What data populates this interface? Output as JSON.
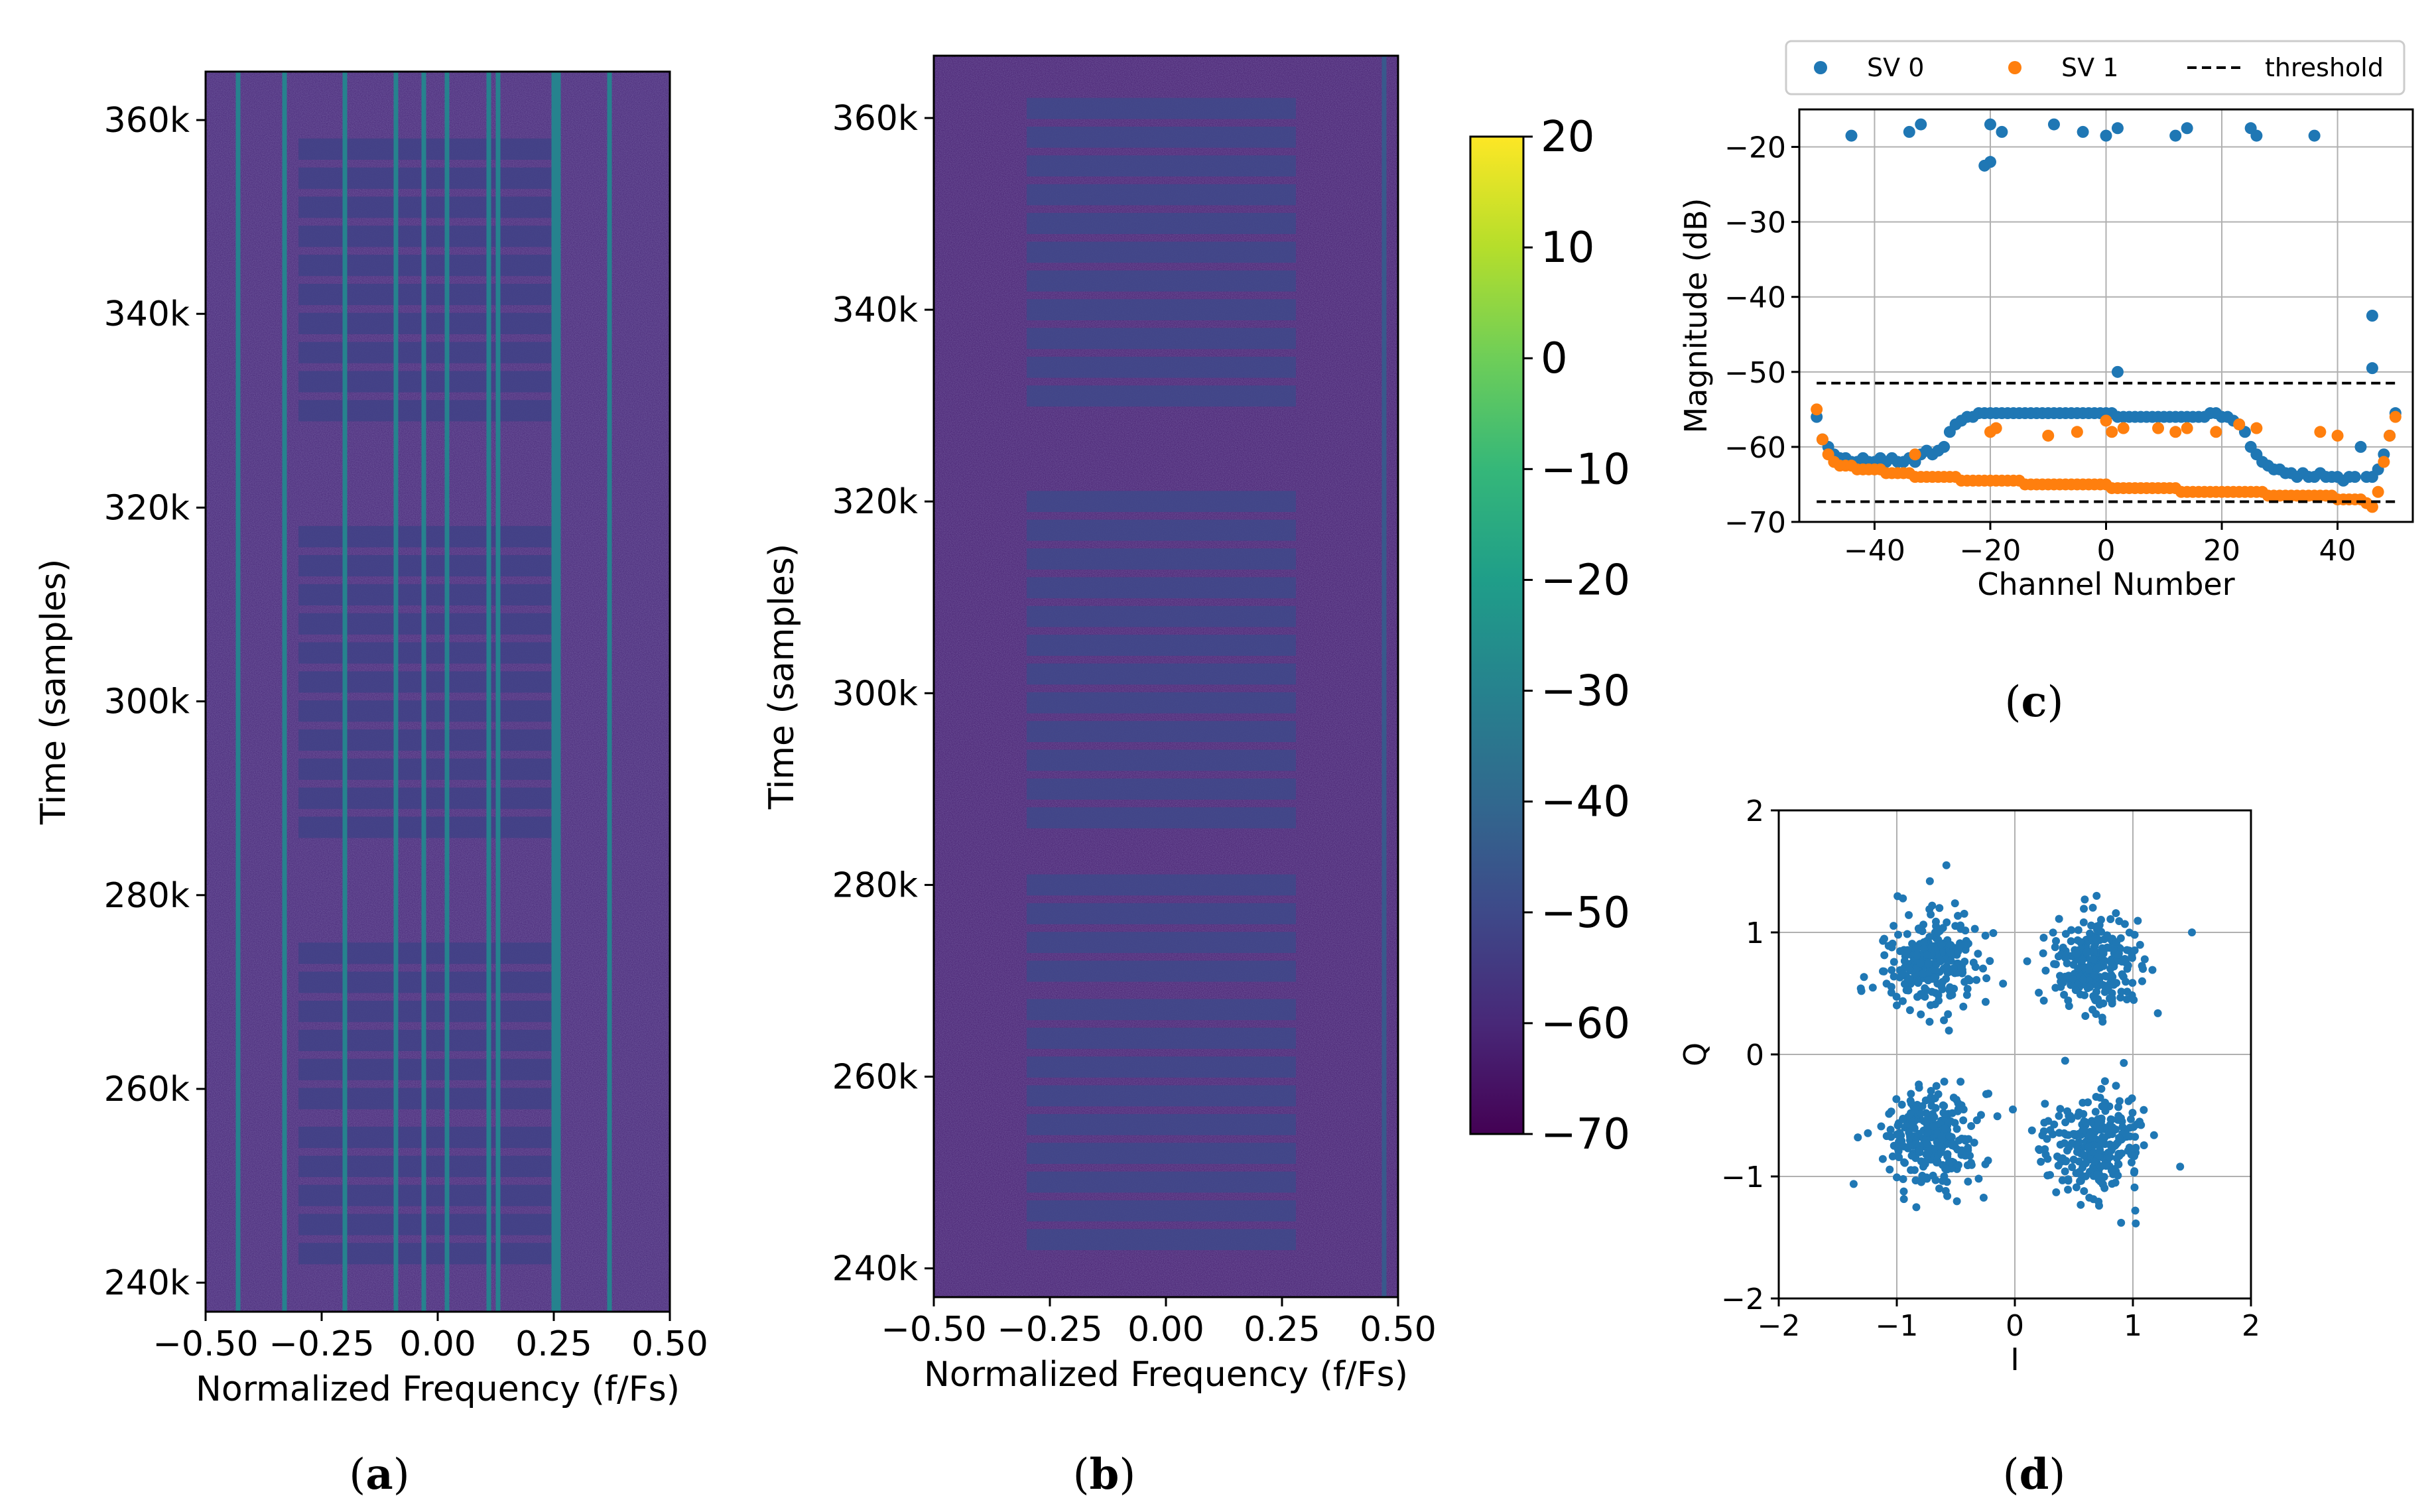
{
  "panels": [
    {
      "id": "a",
      "label_open": "(",
      "label_letter": "a",
      "label_close": ")"
    },
    {
      "id": "b",
      "label_open": "(",
      "label_letter": "b",
      "label_close": ")"
    },
    {
      "id": "c",
      "label_open": "(",
      "label_letter": "c",
      "label_close": ")"
    },
    {
      "id": "d",
      "label_open": "(",
      "label_letter": "d",
      "label_close": ")"
    }
  ],
  "colormap": [
    "#440154",
    "#482878",
    "#3e4989",
    "#31688e",
    "#26828e",
    "#1f9e89",
    "#35b779",
    "#6ece58",
    "#b5de2b",
    "#fde725"
  ],
  "chart_data": [
    {
      "id": "a",
      "type": "heatmap",
      "title": "",
      "xlabel": "Normalized Frequency (f/Fs)",
      "ylabel": "Time (samples)",
      "xlim": [
        -0.5,
        0.5
      ],
      "ylim": [
        237000,
        365000
      ],
      "xticks": [
        "−0.50",
        "−0.25",
        "0.00",
        "0.25",
        "0.50"
      ],
      "xtick_values": [
        -0.5,
        -0.25,
        0.0,
        0.25,
        0.5
      ],
      "yticks": [
        "240k",
        "260k",
        "280k",
        "300k",
        "320k",
        "340k",
        "360k"
      ],
      "ytick_values": [
        240000,
        260000,
        280000,
        300000,
        320000,
        340000,
        360000
      ],
      "background_level_db": -60,
      "tone_lines_freq": [
        -0.43,
        -0.33,
        -0.2,
        -0.09,
        -0.03,
        0.02,
        0.11,
        0.13,
        0.25,
        0.26,
        0.37
      ],
      "tone_level_db": -30,
      "bursts_freq_range": [
        -0.3,
        0.26
      ],
      "burst_level_db": -52,
      "burst_times": [
        243000,
        246000,
        249000,
        252000,
        255000,
        259000,
        262000,
        265000,
        268000,
        271000,
        274000,
        287000,
        290000,
        293000,
        296000,
        299000,
        302000,
        305000,
        308000,
        311000,
        314000,
        317000,
        330000,
        333000,
        336000,
        339000,
        342000,
        345000,
        348000,
        351000,
        354000,
        357000
      ]
    },
    {
      "id": "b",
      "type": "heatmap",
      "title": "",
      "xlabel": "Normalized Frequency (f/Fs)",
      "ylabel": "Time (samples)",
      "xlim": [
        -0.5,
        0.5
      ],
      "ylim": [
        237000,
        366500
      ],
      "xticks": [
        "−0.50",
        "−0.25",
        "0.00",
        "0.25",
        "0.50"
      ],
      "xtick_values": [
        -0.5,
        -0.25,
        0.0,
        0.25,
        0.5
      ],
      "yticks": [
        "240k",
        "260k",
        "280k",
        "300k",
        "320k",
        "340k",
        "360k"
      ],
      "ytick_values": [
        240000,
        260000,
        280000,
        300000,
        320000,
        340000,
        360000
      ],
      "background_level_db": -62,
      "tone_lines_freq": [
        0.47
      ],
      "tone_level_db": -45,
      "bursts_freq_range": [
        -0.3,
        0.28
      ],
      "burst_level_db": -50,
      "burst_times": [
        243000,
        246000,
        249000,
        252000,
        255000,
        258000,
        261000,
        264000,
        267000,
        271000,
        274000,
        277000,
        280000,
        287000,
        290000,
        293000,
        296000,
        299000,
        302000,
        305000,
        308000,
        311000,
        314000,
        317000,
        320000,
        331000,
        334000,
        337000,
        340000,
        343000,
        346000,
        349000,
        352000,
        355000,
        358000,
        361000
      ]
    },
    {
      "id": "colorbar",
      "type": "colorbar",
      "range": [
        -70,
        20
      ],
      "ticks": [
        "20",
        "10",
        "0",
        "−10",
        "−20",
        "−30",
        "−40",
        "−50",
        "−60",
        "−70"
      ],
      "tick_values": [
        20,
        10,
        0,
        -10,
        -20,
        -30,
        -40,
        -50,
        -60,
        -70
      ]
    },
    {
      "id": "c",
      "type": "scatter",
      "title": "",
      "xlabel": "Channel Number",
      "ylabel": "Magnitude (dB)",
      "xlim": [
        -53,
        53
      ],
      "ylim": [
        -70,
        -15
      ],
      "xticks": [
        "−40",
        "−20",
        "0",
        "20",
        "40"
      ],
      "xtick_values": [
        -40,
        -20,
        0,
        20,
        40
      ],
      "yticks": [
        "−20",
        "−30",
        "−40",
        "−50",
        "−60",
        "−70"
      ],
      "ytick_values": [
        -20,
        -30,
        -40,
        -50,
        -60,
        -70
      ],
      "grid": true,
      "legend_position": "top",
      "legend": [
        "SV 0",
        "SV 1",
        "threshold"
      ],
      "thresholds": [
        {
          "y": -51.5,
          "x_range": [
            -50,
            50
          ],
          "color": "#000000",
          "style": "dashed"
        },
        {
          "y": -67.3,
          "x_range": [
            -50,
            50
          ],
          "color": "#000000",
          "style": "dashed"
        }
      ],
      "series": [
        {
          "name": "SV 0",
          "color": "#1f77b4",
          "x": [
            -44,
            -34,
            -32,
            -20,
            -20,
            -21,
            -18,
            -9,
            -4,
            0,
            2,
            12,
            14,
            25,
            26,
            36,
            46,
            46,
            2,
            -50,
            -49,
            -48,
            -47,
            -46,
            -45,
            -44,
            -43,
            -42,
            -41,
            -40,
            -39,
            -38,
            -37,
            -36,
            -35,
            -34,
            -33,
            -32,
            -31,
            -30,
            -29,
            -28,
            -27,
            -26,
            -25,
            -24,
            -23,
            -22,
            -21,
            -20,
            -19,
            -18,
            -17,
            -16,
            -15,
            -14,
            -13,
            -12,
            -11,
            -10,
            -9,
            -8,
            -7,
            -6,
            -5,
            -4,
            -3,
            -2,
            -1,
            0,
            1,
            2,
            3,
            4,
            5,
            6,
            7,
            8,
            9,
            10,
            11,
            12,
            13,
            14,
            15,
            16,
            17,
            18,
            19,
            20,
            21,
            22,
            23,
            24,
            25,
            26,
            27,
            28,
            29,
            30,
            31,
            32,
            33,
            34,
            35,
            36,
            37,
            38,
            39,
            40,
            41,
            42,
            43,
            44,
            45,
            46,
            47,
            48,
            49,
            50
          ],
          "y": [
            -18.5,
            -18,
            -17,
            -17,
            -22,
            -22.5,
            -18,
            -17,
            -18,
            -18.5,
            -17.5,
            -18.5,
            -17.5,
            -17.5,
            -18.5,
            -18.5,
            -42.5,
            -49.5,
            -50,
            -56,
            -59,
            -60,
            -61,
            -61.5,
            -61.5,
            -62,
            -62,
            -61.5,
            -62,
            -62,
            -61.5,
            -62,
            -61.5,
            -62,
            -62,
            -61.5,
            -62,
            -61,
            -60.5,
            -61,
            -60.5,
            -60,
            -58,
            -57,
            -56.5,
            -56,
            -56,
            -55.5,
            -55.5,
            -55.5,
            -55.5,
            -55.5,
            -55.5,
            -55.5,
            -55.5,
            -55.5,
            -55.5,
            -55.5,
            -55.5,
            -55.5,
            -55.5,
            -55.5,
            -55.5,
            -55.5,
            -55.5,
            -55.5,
            -55.5,
            -55.5,
            -55.5,
            -55.5,
            -55.5,
            -56,
            -56,
            -56,
            -56,
            -56,
            -56,
            -56,
            -56,
            -56,
            -56,
            -56,
            -56,
            -56,
            -56,
            -56,
            -56,
            -55.5,
            -55.5,
            -56,
            -56,
            -56.5,
            -57,
            -58,
            -60,
            -61,
            -62,
            -62.5,
            -63,
            -63,
            -63.5,
            -63.5,
            -64,
            -63.5,
            -64,
            -64,
            -63.5,
            -64,
            -64,
            -64,
            -64.5,
            -64,
            -64,
            -60,
            -64,
            -64,
            -63,
            -61,
            -58.5,
            -55.5
          ]
        },
        {
          "name": "SV 1",
          "color": "#ff7f0e",
          "x": [
            -50,
            -49,
            -48,
            -47,
            -46,
            -45,
            -44,
            -43,
            -42,
            -41,
            -40,
            -39,
            -38,
            -37,
            -36,
            -35,
            -34,
            -33,
            -32,
            -31,
            -30,
            -29,
            -28,
            -27,
            -26,
            -25,
            -24,
            -23,
            -22,
            -21,
            -20,
            -19,
            -18,
            -17,
            -16,
            -15,
            -14,
            -13,
            -12,
            -11,
            -10,
            -9,
            -8,
            -7,
            -6,
            -5,
            -4,
            -3,
            -2,
            -1,
            0,
            1,
            2,
            3,
            4,
            5,
            6,
            7,
            8,
            9,
            10,
            11,
            12,
            13,
            14,
            15,
            16,
            17,
            18,
            19,
            20,
            21,
            22,
            23,
            24,
            25,
            26,
            27,
            28,
            29,
            30,
            31,
            32,
            33,
            34,
            35,
            36,
            37,
            38,
            39,
            40,
            41,
            42,
            43,
            44,
            45,
            46,
            47,
            48,
            49,
            50,
            -33,
            -20,
            -19,
            -10,
            -5,
            0,
            1,
            3,
            9,
            12,
            14,
            19,
            23,
            26,
            37,
            40
          ],
          "y": [
            -55,
            -59,
            -61,
            -62,
            -62.5,
            -62.5,
            -62.5,
            -63,
            -63,
            -63,
            -63,
            -63,
            -63.5,
            -63.5,
            -63.5,
            -63.5,
            -63.5,
            -64,
            -64,
            -64,
            -64,
            -64,
            -64,
            -64,
            -64,
            -64.5,
            -64.5,
            -64.5,
            -64.5,
            -64.5,
            -64.5,
            -64.5,
            -64.5,
            -64.5,
            -64.5,
            -64.5,
            -65,
            -65,
            -65,
            -65,
            -65,
            -65,
            -65,
            -65,
            -65,
            -65,
            -65,
            -65,
            -65,
            -65,
            -65,
            -65.5,
            -65.5,
            -65.5,
            -65.5,
            -65.5,
            -65.5,
            -65.5,
            -65.5,
            -65.5,
            -65.5,
            -65.5,
            -65.5,
            -66,
            -66,
            -66,
            -66,
            -66,
            -66,
            -66,
            -66,
            -66,
            -66,
            -66,
            -66,
            -66,
            -66,
            -66,
            -66.5,
            -66.5,
            -66.5,
            -66.5,
            -66.5,
            -66.5,
            -66.5,
            -66.5,
            -66.5,
            -66.5,
            -66.5,
            -66.5,
            -67,
            -67,
            -67,
            -67,
            -67,
            -67.5,
            -68,
            -66,
            -62,
            -58.5,
            -56,
            -61,
            -58,
            -57.5,
            -58.5,
            -58,
            -56.5,
            -58,
            -57.5,
            -57.5,
            -58,
            -57.5,
            -58,
            -57,
            -57.5,
            -58,
            -58.5
          ]
        }
      ]
    },
    {
      "id": "d",
      "type": "scatter",
      "title": "",
      "xlabel": "I",
      "ylabel": "Q",
      "xlim": [
        -2,
        2
      ],
      "ylim": [
        -2,
        2
      ],
      "xticks": [
        "−2",
        "−1",
        "0",
        "1",
        "2"
      ],
      "xtick_values": [
        -2,
        -1,
        0,
        1,
        2
      ],
      "yticks": [
        "−2",
        "−1",
        "0",
        "1",
        "2"
      ],
      "ytick_values": [
        -2,
        -1,
        0,
        1,
        2
      ],
      "grid": true,
      "series": [
        {
          "color": "#1f77b4",
          "clusters": [
            {
              "center": [
                -0.7,
                0.75
              ],
              "spread": 0.2,
              "count": 260
            },
            {
              "center": [
                0.7,
                0.72
              ],
              "spread": 0.2,
              "count": 260
            },
            {
              "center": [
                -0.72,
                -0.7
              ],
              "spread": 0.2,
              "count": 260
            },
            {
              "center": [
                0.68,
                -0.72
              ],
              "spread": 0.2,
              "count": 260
            }
          ],
          "outliers": [
            [
              -0.58,
              1.55
            ],
            [
              1.5,
              1.0
            ],
            [
              -1.3,
              0.52
            ],
            [
              -1.33,
              -0.68
            ],
            [
              -0.25,
              -0.9
            ],
            [
              0.22,
              -0.88
            ],
            [
              0.3,
              -0.62
            ],
            [
              0.9,
              -1.38
            ],
            [
              1.4,
              -0.92
            ],
            [
              -0.1,
              0.58
            ],
            [
              -0.72,
              1.42
            ],
            [
              1.02,
              -1.28
            ]
          ]
        }
      ]
    }
  ]
}
